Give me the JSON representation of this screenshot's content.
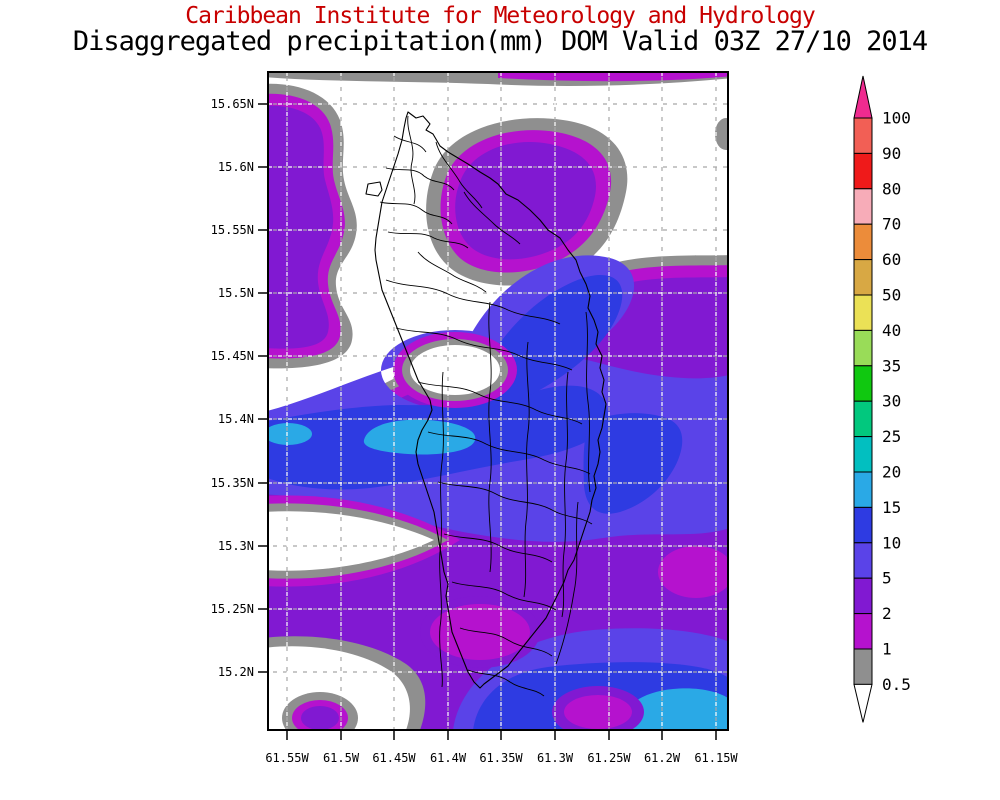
{
  "title": {
    "line1": "Caribbean Institute for Meteorology and Hydrology",
    "line2": "Disaggregated precipitation(mm) DOM Valid 03Z 27/10 2014"
  },
  "axes": {
    "lat_ticks": [
      "15.65N",
      "15.6N",
      "15.55N",
      "15.5N",
      "15.45N",
      "15.4N",
      "15.35N",
      "15.3N",
      "15.25N",
      "15.2N"
    ],
    "lon_ticks": [
      "61.55W",
      "61.5W",
      "61.45W",
      "61.4W",
      "61.35W",
      "61.3W",
      "61.25W",
      "61.2W",
      "61.15W"
    ]
  },
  "colorbar": {
    "values": [
      "100",
      "90",
      "80",
      "70",
      "60",
      "50",
      "40",
      "35",
      "30",
      "25",
      "20",
      "15",
      "10",
      "5",
      "2",
      "1",
      "0.5"
    ],
    "colors": [
      "#F25F55",
      "#EF1A1A",
      "#F7ACB8",
      "#EC8C3A",
      "#D8A844",
      "#EBE156",
      "#99DC58",
      "#10C810",
      "#02C87E",
      "#02BFC0",
      "#2AA9E6",
      "#2E3BE2",
      "#5A43E8",
      "#8119D2",
      "#B512CE",
      "#8F8F8F"
    ],
    "arrow_top_color": "#EF2B8F",
    "arrow_bottom_color": "#FFFFFF"
  },
  "colors": {
    "title_line1": "#C80000",
    "title_line2": "#000000",
    "c_grey": "#8F8F8F",
    "c_magenta": "#B512CE",
    "c_purple": "#8119D2",
    "c_blueviolet": "#5A43E8",
    "c_blue": "#2E3BE2",
    "c_cyan": "#2AA9E6",
    "grid_dash_light": "#FFFFFF",
    "grid_dash_dark": "#A8A8A8",
    "coastline": "#000000"
  }
}
